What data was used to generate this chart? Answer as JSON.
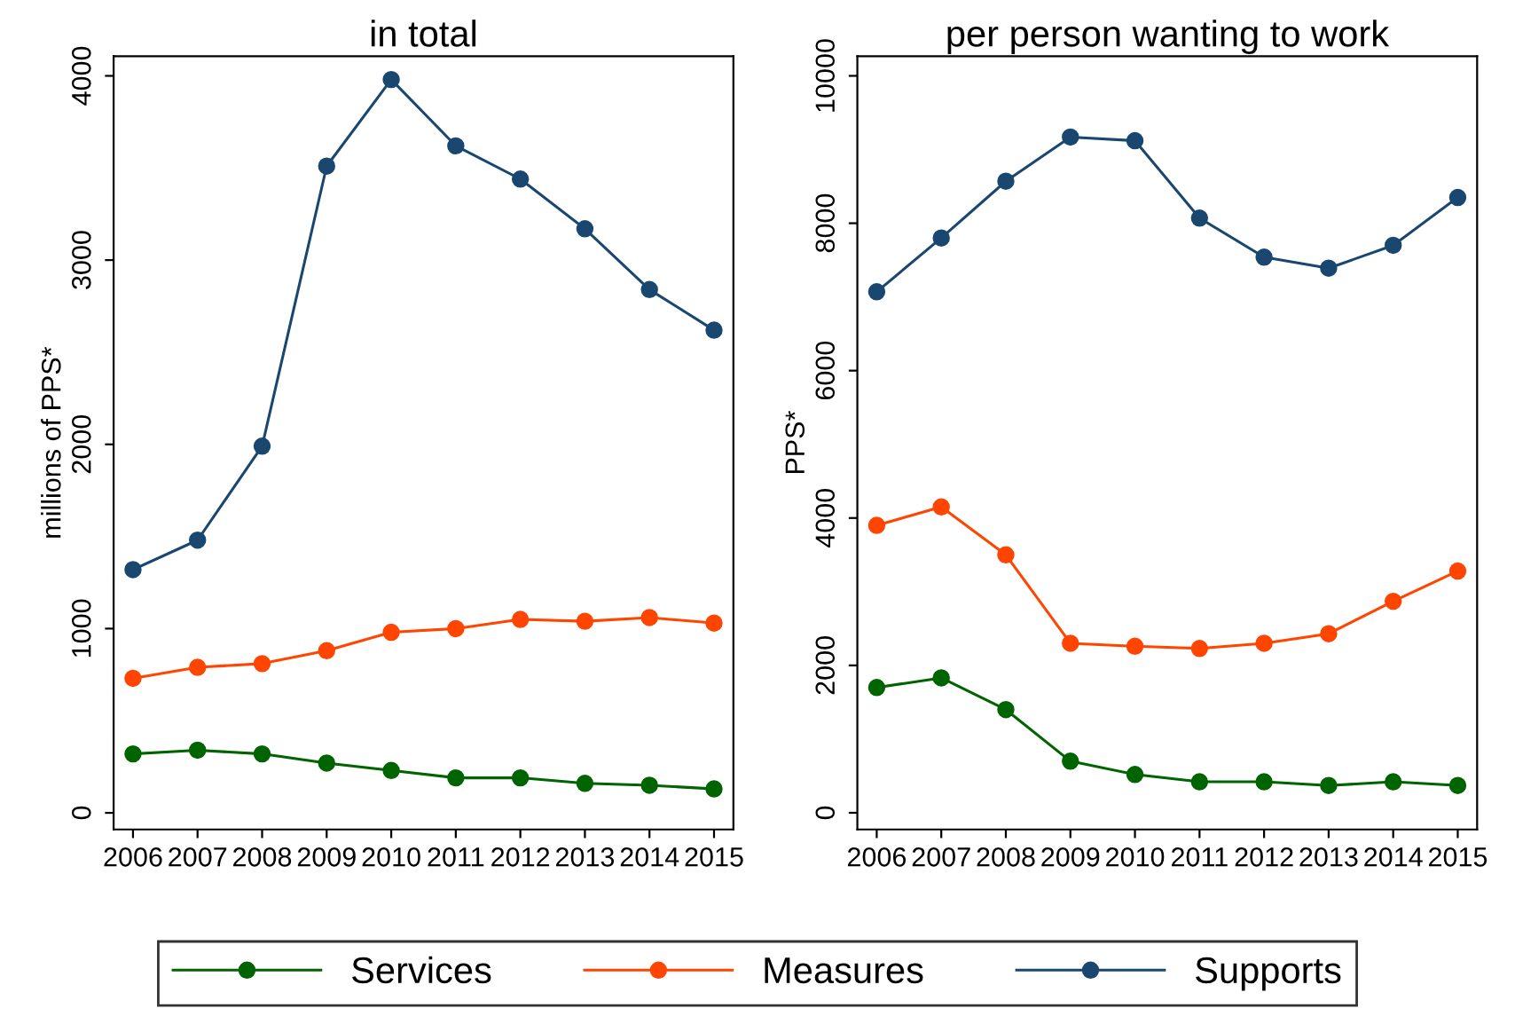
{
  "chart_data": [
    {
      "type": "line",
      "title": "in total",
      "ylabel": "millions of PPS*",
      "categories": [
        "2006",
        "2007",
        "2008",
        "2009",
        "2010",
        "2011",
        "2012",
        "2013",
        "2014",
        "2015"
      ],
      "ylim": [
        -90,
        4106
      ],
      "yticks": [
        0,
        1000,
        2000,
        3000,
        4000
      ],
      "marker": "circle",
      "line_style": "solid",
      "grid": false,
      "legend": "bottom",
      "series": [
        {
          "name": "Services",
          "color": "#006400",
          "values": [
            320,
            340,
            320,
            270,
            230,
            190,
            190,
            160,
            150,
            130
          ]
        },
        {
          "name": "Measures",
          "color": "#ff4500",
          "values": [
            730,
            790,
            810,
            880,
            980,
            1000,
            1050,
            1040,
            1060,
            1030
          ]
        },
        {
          "name": "Supports",
          "color": "#1a476f",
          "values": [
            1320,
            1480,
            1990,
            3510,
            3980,
            3620,
            3440,
            3170,
            2840,
            2620
          ]
        }
      ]
    },
    {
      "type": "line",
      "title": "per person wanting to work",
      "ylabel": "PPS*",
      "categories": [
        "2006",
        "2007",
        "2008",
        "2009",
        "2010",
        "2011",
        "2012",
        "2013",
        "2014",
        "2015"
      ],
      "ylim": [
        -226,
        10265
      ],
      "yticks": [
        0,
        2000,
        4000,
        6000,
        8000,
        10000
      ],
      "marker": "circle",
      "line_style": "solid",
      "grid": false,
      "series": [
        {
          "color": "#006400",
          "values": [
            1700,
            1830,
            1400,
            700,
            520,
            420,
            420,
            370,
            420,
            370
          ]
        },
        {
          "color": "#ff4500",
          "values": [
            3900,
            4150,
            3500,
            2300,
            2260,
            2230,
            2300,
            2430,
            2870,
            3280
          ]
        },
        {
          "color": "#1a476f",
          "values": [
            7070,
            7800,
            8570,
            9170,
            9120,
            8070,
            7540,
            7390,
            7700,
            8350
          ]
        }
      ]
    }
  ]
}
